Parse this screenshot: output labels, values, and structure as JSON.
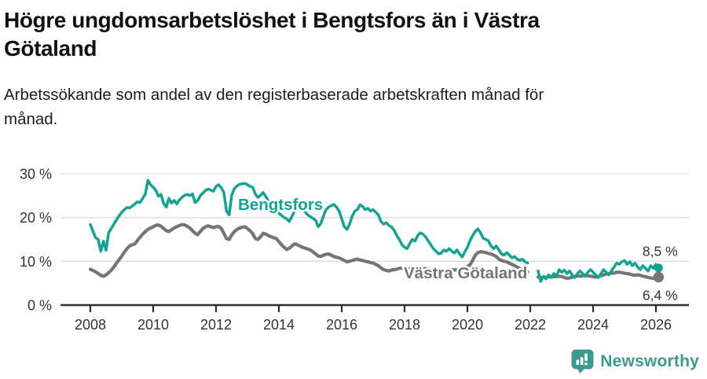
{
  "header": {
    "title_line1": "Högre ungdomsarbetslöshet i Bengtsfors än i Västra",
    "title_line2": "Götaland",
    "subtitle_line1": "Arbetssökande som andel av den registerbaserade arbetskraften månad för",
    "subtitle_line2": "månad."
  },
  "footer": {
    "brand": "Newsworthy",
    "brand_color": "#3d9a90"
  },
  "chart_data": {
    "type": "line",
    "unit": "%",
    "title": "Högre ungdomsarbetslöshet i Bengtsfors än i Västra Götaland",
    "subtitle": "Arbetssökande som andel av den registerbaserade arbetskraften månad för månad.",
    "x_start": 2008.0,
    "x_step": 0.0833333,
    "x_ticks": [
      2008,
      2010,
      2012,
      2014,
      2016,
      2018,
      2020,
      2022,
      2024,
      2026
    ],
    "y_ticks": [
      0,
      10,
      20,
      30
    ],
    "y_tick_labels": [
      "0 %",
      "10 %",
      "20 %",
      "30 %"
    ],
    "ylim": [
      0,
      32
    ],
    "grid": true,
    "legend_position": "inline-labels",
    "axis_color": "#2e2e2e",
    "grid_color": "#dcdcdc",
    "series": [
      {
        "name": "Bengtsfors",
        "color": "#13a392",
        "end_label": "8,5 %",
        "end_value": 8.5,
        "values": [
          18.4,
          16.9,
          15.4,
          15.0,
          12.3,
          14.6,
          12.5,
          16.5,
          17.5,
          18.5,
          19.5,
          20.4,
          21.2,
          21.8,
          22.3,
          22.2,
          22.6,
          23.1,
          23.6,
          23.4,
          24.4,
          25.4,
          28.5,
          27.5,
          26.9,
          26.2,
          24.9,
          25.3,
          23.2,
          22.4,
          24.4,
          23.3,
          23.9,
          23.1,
          24.0,
          24.6,
          25.1,
          25.3,
          25.0,
          25.4,
          23.4,
          23.9,
          25.0,
          25.6,
          26.2,
          26.5,
          26.3,
          26.0,
          27.1,
          27.5,
          26.8,
          25.7,
          21.5,
          20.6,
          25.1,
          26.6,
          27.2,
          27.6,
          27.7,
          27.8,
          27.5,
          27.1,
          26.9,
          25.4,
          24.6,
          25.1,
          25.7,
          24.8,
          23.8,
          23.0,
          22.3,
          21.6,
          21.0,
          20.5,
          20.0,
          19.7,
          19.1,
          20.3,
          21.5,
          22.4,
          22.5,
          22.0,
          21.3,
          20.6,
          20.2,
          19.8,
          19.4,
          17.9,
          18.6,
          20.3,
          21.8,
          22.4,
          22.7,
          23.0,
          22.4,
          21.5,
          19.7,
          17.9,
          17.3,
          18.5,
          20.3,
          21.5,
          21.8,
          22.9,
          22.5,
          21.8,
          22.1,
          21.5,
          21.8,
          21.2,
          20.6,
          19.1,
          18.5,
          18.8,
          18.2,
          17.9,
          17.1,
          15.9,
          15.0,
          13.8,
          13.2,
          12.9,
          14.1,
          15.0,
          14.6,
          15.9,
          16.5,
          16.2,
          15.6,
          14.7,
          13.8,
          12.9,
          12.3,
          11.7,
          11.9,
          12.6,
          12.3,
          12.9,
          12.3,
          11.9,
          12.6,
          11.7,
          11.0,
          12.2,
          13.2,
          14.7,
          15.9,
          16.8,
          17.4,
          16.5,
          15.3,
          15.0,
          14.7,
          13.5,
          12.9,
          13.5,
          12.6,
          11.7,
          11.4,
          12.0,
          11.4,
          10.8,
          11.1,
          10.5,
          10.2,
          10.5,
          9.9,
          9.6,
          null,
          null,
          null,
          7.8,
          5.4,
          6.6,
          6.0,
          6.9,
          6.3,
          7.2,
          6.6,
          8.1,
          7.5,
          8.0,
          7.2,
          7.8,
          6.9,
          6.3,
          7.2,
          7.8,
          7.2,
          6.6,
          7.5,
          8.1,
          7.5,
          6.9,
          6.3,
          7.2,
          8.1,
          7.5,
          6.9,
          7.8,
          8.7,
          9.6,
          9.3,
          9.9,
          10.2,
          9.3,
          9.9,
          9.0,
          9.6,
          8.7,
          8.1,
          9.0,
          8.4,
          7.8,
          9.0,
          8.4,
          9.3,
          8.5
        ]
      },
      {
        "name": "Västra Götaland",
        "color": "#757575",
        "end_label": "6,4 %",
        "end_value": 6.4,
        "values": [
          8.2,
          7.9,
          7.6,
          7.2,
          6.8,
          6.6,
          6.9,
          7.4,
          8.0,
          8.7,
          9.6,
          10.4,
          11.2,
          12.1,
          12.9,
          13.5,
          13.8,
          14.0,
          14.8,
          15.5,
          16.2,
          16.8,
          17.3,
          17.6,
          17.9,
          18.2,
          18.3,
          18.0,
          17.5,
          17.0,
          16.8,
          17.2,
          17.6,
          17.9,
          18.2,
          18.4,
          18.3,
          18.0,
          17.6,
          17.0,
          16.4,
          16.1,
          16.8,
          17.5,
          17.9,
          18.1,
          17.9,
          17.7,
          17.9,
          18.0,
          17.5,
          16.4,
          15.2,
          15.0,
          16.0,
          16.8,
          17.3,
          17.6,
          17.8,
          17.9,
          17.5,
          17.0,
          16.3,
          15.2,
          15.0,
          15.6,
          16.4,
          16.2,
          15.9,
          15.6,
          15.4,
          15.2,
          14.5,
          13.8,
          13.2,
          12.7,
          13.0,
          13.5,
          14.0,
          13.8,
          13.5,
          13.2,
          13.0,
          12.8,
          12.6,
          12.2,
          11.7,
          11.2,
          11.1,
          11.4,
          11.6,
          11.7,
          11.4,
          11.1,
          10.9,
          10.8,
          10.5,
          10.2,
          9.9,
          10.0,
          10.2,
          10.4,
          10.5,
          10.3,
          10.2,
          10.0,
          9.9,
          9.7,
          9.6,
          9.3,
          9.0,
          8.5,
          8.1,
          7.9,
          7.8,
          8.0,
          8.1,
          8.2,
          8.4,
          8.4,
          8.3,
          8.2,
          8.3,
          8.4,
          8.3,
          8.4,
          8.5,
          8.4,
          8.3,
          8.2,
          8.1,
          8.0,
          7.9,
          7.8,
          7.9,
          8.0,
          7.9,
          8.0,
          8.1,
          8.0,
          8.1,
          8.2,
          8.3,
          8.5,
          8.8,
          9.2,
          10.2,
          11.4,
          12.0,
          12.2,
          12.1,
          12.0,
          11.8,
          11.7,
          11.4,
          11.1,
          10.5,
          10.2,
          10.0,
          9.9,
          9.6,
          9.3,
          9.0,
          8.7,
          8.4,
          8.1,
          7.9,
          7.6,
          null,
          null,
          null,
          6.4,
          6.2,
          6.4,
          6.3,
          6.5,
          6.4,
          6.5,
          6.5,
          6.6,
          6.5,
          6.3,
          6.1,
          6.2,
          6.4,
          6.5,
          6.7,
          6.6,
          6.7,
          6.8,
          6.7,
          6.6,
          6.5,
          6.4,
          6.5,
          6.7,
          6.9,
          7.1,
          7.2,
          7.3,
          7.3,
          7.5,
          7.5,
          7.4,
          7.3,
          7.2,
          7.1,
          6.9,
          6.8,
          6.9,
          6.8,
          6.6,
          6.5,
          6.3,
          6.2,
          6.1,
          6.3,
          6.4
        ]
      }
    ]
  }
}
